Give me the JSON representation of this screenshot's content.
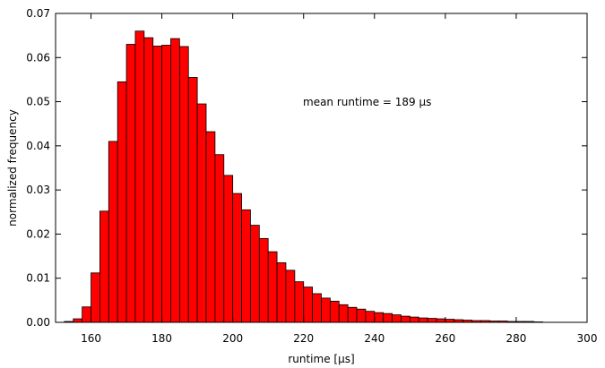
{
  "chart_data": {
    "type": "bar",
    "title": "",
    "xlabel": "runtime [µs]",
    "ylabel": "normalized frequency",
    "annotation": "mean runtime = 189 µs",
    "xlim": [
      150,
      300
    ],
    "ylim": [
      0,
      0.07
    ],
    "xticks": [
      "160",
      "180",
      "200",
      "220",
      "240",
      "260",
      "280",
      "300"
    ],
    "yticks": [
      "0.00",
      "0.01",
      "0.02",
      "0.03",
      "0.04",
      "0.05",
      "0.06",
      "0.07"
    ],
    "grid": false,
    "bar_color": "#ff0000",
    "bar_edge_color": "#000000",
    "bin_width": 2.5,
    "bin_starts": [
      152.5,
      155,
      157.5,
      160,
      162.5,
      165,
      167.5,
      170,
      172.5,
      175,
      177.5,
      180,
      182.5,
      185,
      187.5,
      190,
      192.5,
      195,
      197.5,
      200,
      202.5,
      205,
      207.5,
      210,
      212.5,
      215,
      217.5,
      220,
      222.5,
      225,
      227.5,
      230,
      232.5,
      235,
      237.5,
      240,
      242.5,
      245,
      247.5,
      250,
      252.5,
      255,
      257.5,
      260,
      262.5,
      265,
      267.5,
      270,
      272.5,
      275,
      277.5,
      280,
      282.5,
      285
    ],
    "values": [
      0.0002,
      0.0008,
      0.0035,
      0.0112,
      0.0252,
      0.041,
      0.0545,
      0.063,
      0.066,
      0.0645,
      0.0626,
      0.0628,
      0.0643,
      0.0625,
      0.0555,
      0.0495,
      0.0432,
      0.038,
      0.0333,
      0.0292,
      0.0255,
      0.022,
      0.019,
      0.016,
      0.0135,
      0.0118,
      0.0092,
      0.008,
      0.0065,
      0.0055,
      0.0048,
      0.004,
      0.0034,
      0.003,
      0.0025,
      0.0022,
      0.002,
      0.0017,
      0.0014,
      0.0012,
      0.001,
      0.0009,
      0.0008,
      0.0007,
      0.0006,
      0.0005,
      0.0004,
      0.0004,
      0.0003,
      0.0003,
      0.0002,
      0.0002,
      0.0002,
      0.0001
    ]
  }
}
